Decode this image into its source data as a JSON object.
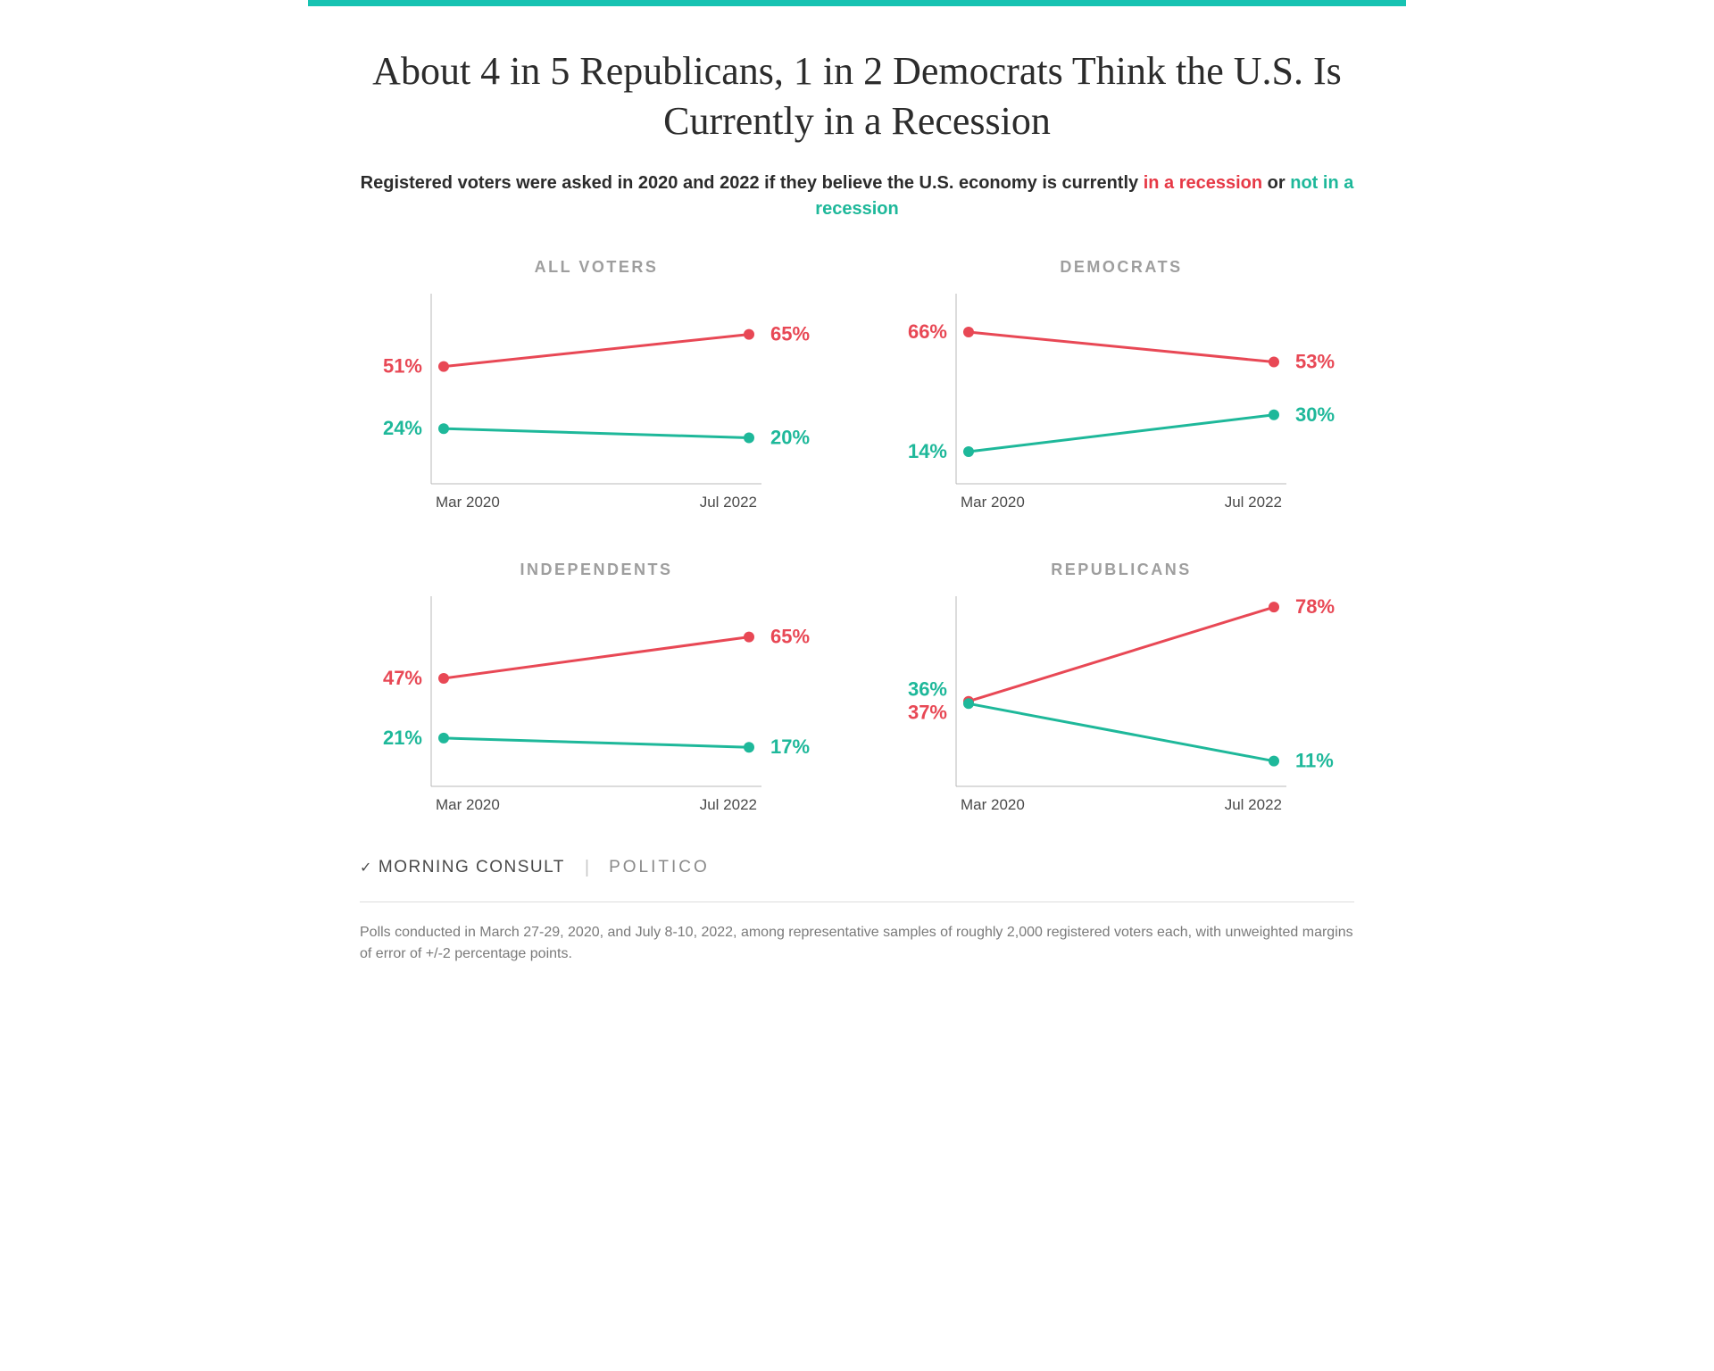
{
  "chart": {
    "type": "line-small-multiples",
    "layout": {
      "rows": 2,
      "cols": 2
    },
    "colors": {
      "top_bar": "#17c3b2",
      "background": "#ffffff",
      "axis": "#b8b8b8",
      "text": "#2c2c2c",
      "muted_text": "#9e9e9e",
      "footer_text": "#7a7a7a",
      "divider": "#dcdcdc",
      "series_red": "#e84855",
      "series_teal": "#1eb89a"
    },
    "title": "About 4 in 5 Republicans, 1 in 2 Democrats Think the U.S. Is Currently in a Recession",
    "title_fontsize": 44,
    "subtitle_fontsize": 20,
    "subtitle": {
      "pre": "Registered voters were asked in 2020 and 2022 if they believe the U.S. economy is currently ",
      "red": "in a recession",
      "mid": " or ",
      "teal": "not in a recession"
    },
    "x_categories": [
      "Mar 2020",
      "Jul 2022"
    ],
    "ylim": [
      0,
      80
    ],
    "marker_radius": 6,
    "line_width": 3,
    "label_fontsize": 22,
    "axis_fontsize": 17,
    "panel_title_fontsize": 18,
    "panel_title_spacing": 2.5,
    "panels": [
      {
        "title": "ALL VOTERS",
        "series": {
          "red": {
            "start": 51,
            "end": 65,
            "start_label": "51%",
            "end_label": "65%"
          },
          "teal": {
            "start": 24,
            "end": 20,
            "start_label": "24%",
            "end_label": "20%"
          }
        }
      },
      {
        "title": "DEMOCRATS",
        "series": {
          "red": {
            "start": 66,
            "end": 53,
            "start_label": "66%",
            "end_label": "53%"
          },
          "teal": {
            "start": 14,
            "end": 30,
            "start_label": "14%",
            "end_label": "30%"
          }
        }
      },
      {
        "title": "INDEPENDENTS",
        "series": {
          "red": {
            "start": 47,
            "end": 65,
            "start_label": "47%",
            "end_label": "65%"
          },
          "teal": {
            "start": 21,
            "end": 17,
            "start_label": "21%",
            "end_label": "17%"
          }
        }
      },
      {
        "title": "REPUBLICANS",
        "merged_start": true,
        "series": {
          "red": {
            "start": 37,
            "end": 78,
            "start_label": "37%",
            "end_label": "78%"
          },
          "teal": {
            "start": 36,
            "end": 11,
            "start_label": "36%",
            "end_label": "11%"
          }
        }
      }
    ],
    "logos": {
      "mc": "MORNING CONSULT",
      "sep": "|",
      "politico": "POLITICO"
    },
    "footer": "Polls conducted in March 27-29, 2020, and July 8-10, 2022, among representative samples of roughly 2,000 registered voters each, with unweighted margins of error of +/-2 percentage points."
  }
}
